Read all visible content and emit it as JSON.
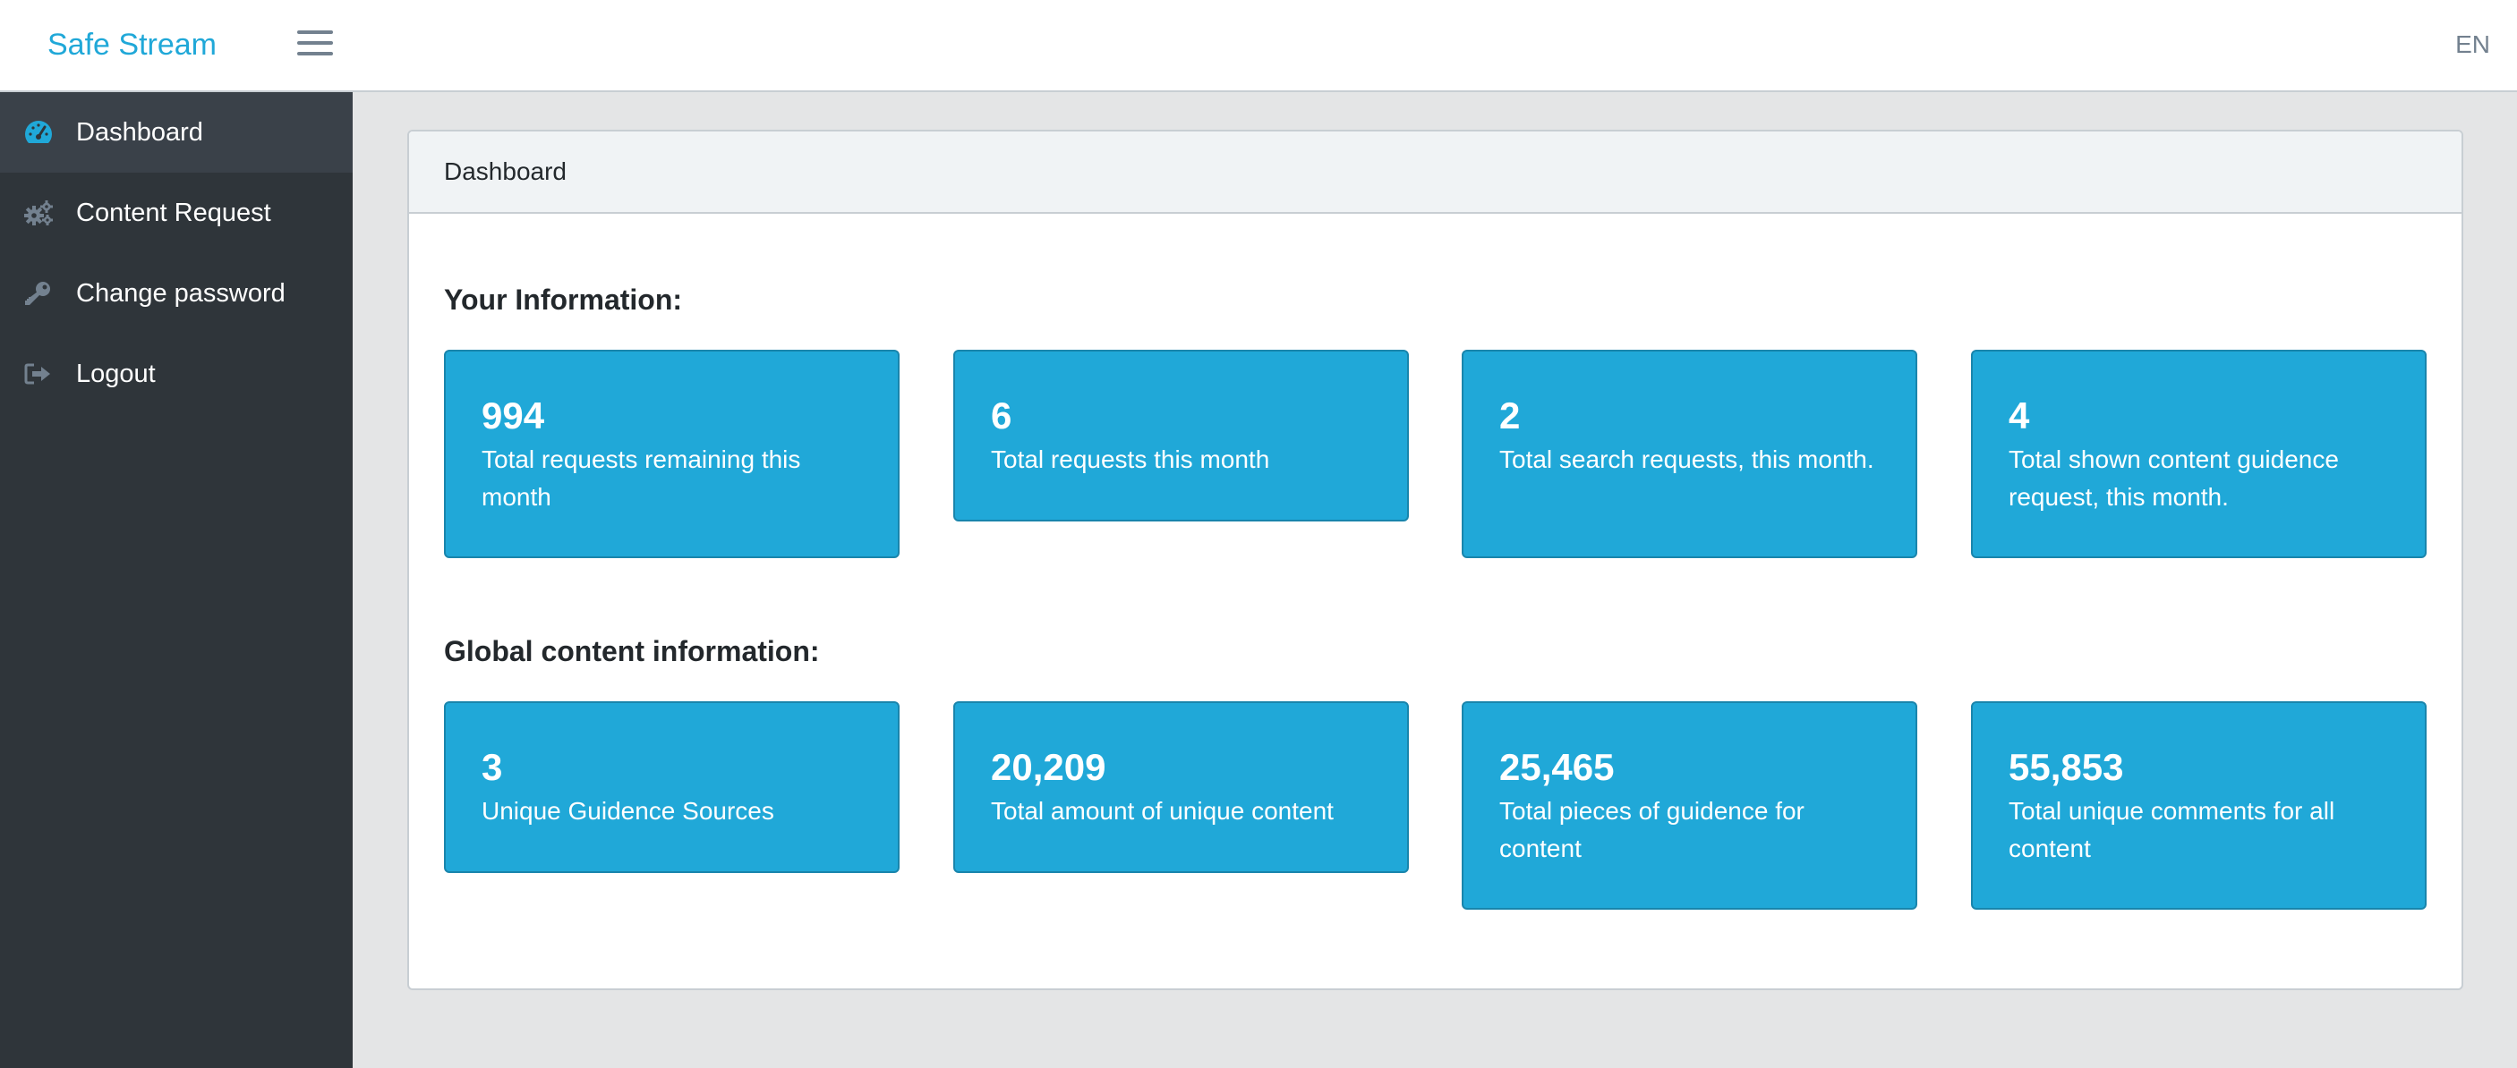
{
  "header": {
    "brand": "Safe Stream",
    "menu_icon": "hamburger-icon",
    "language": "EN"
  },
  "sidebar": {
    "items": [
      {
        "label": "Dashboard",
        "icon": "speedometer-icon",
        "active": true
      },
      {
        "label": "Content Request",
        "icon": "gears-icon",
        "active": false
      },
      {
        "label": "Change password",
        "icon": "key-icon",
        "active": false
      },
      {
        "label": "Logout",
        "icon": "logout-icon",
        "active": false
      }
    ]
  },
  "card": {
    "title": "Dashboard"
  },
  "your_info": {
    "title": "Your Information:",
    "tiles": [
      {
        "value": "994",
        "label": "Total requests remaining this month"
      },
      {
        "value": "6",
        "label": "Total requests this month"
      },
      {
        "value": "2",
        "label": "Total search requests, this month."
      },
      {
        "value": "4",
        "label": "Total shown content guidence request, this month."
      }
    ]
  },
  "global_info": {
    "title": "Global content information:",
    "tiles": [
      {
        "value": "3",
        "label": "Unique Guidence Sources"
      },
      {
        "value": "20,209",
        "label": "Total amount of unique content"
      },
      {
        "value": "25,465",
        "label": "Total pieces of guidence for content"
      },
      {
        "value": "55,853",
        "label": "Total unique comments for all content"
      }
    ]
  },
  "colors": {
    "brand": "#20a8d8",
    "tile_bg": "#20a8d8",
    "sidebar_bg": "#2f353a",
    "sidebar_active": "#3a4149",
    "page_bg": "#e4e5e6"
  }
}
